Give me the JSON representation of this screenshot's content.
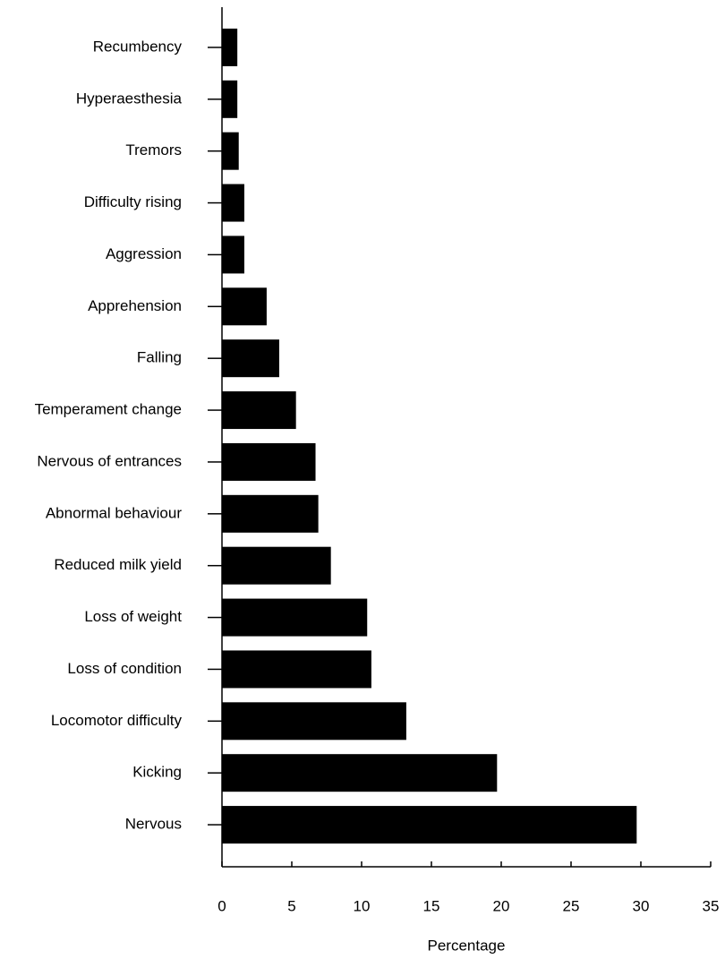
{
  "chart_data": {
    "type": "bar",
    "orientation": "horizontal",
    "xlabel": "Percentage",
    "categories": [
      "Recumbency",
      "Hyperaesthesia",
      "Tremors",
      "Difficulty rising",
      "Aggression",
      "Apprehension",
      "Falling",
      "Temperament change",
      "Nervous of entrances",
      "Abnormal behaviour",
      "Reduced milk yield",
      "Loss of weight",
      "Loss of condition",
      "Locomotor difficulty",
      "Kicking",
      "Nervous"
    ],
    "values": [
      1.1,
      1.1,
      1.2,
      1.6,
      1.6,
      3.2,
      4.1,
      5.3,
      6.7,
      6.9,
      7.8,
      10.4,
      10.7,
      13.2,
      19.7,
      29.7
    ],
    "color": "#000000",
    "xlim": [
      0,
      35
    ],
    "xticks": [
      0,
      5,
      10,
      15,
      20,
      25,
      30,
      35
    ],
    "grid": false
  }
}
